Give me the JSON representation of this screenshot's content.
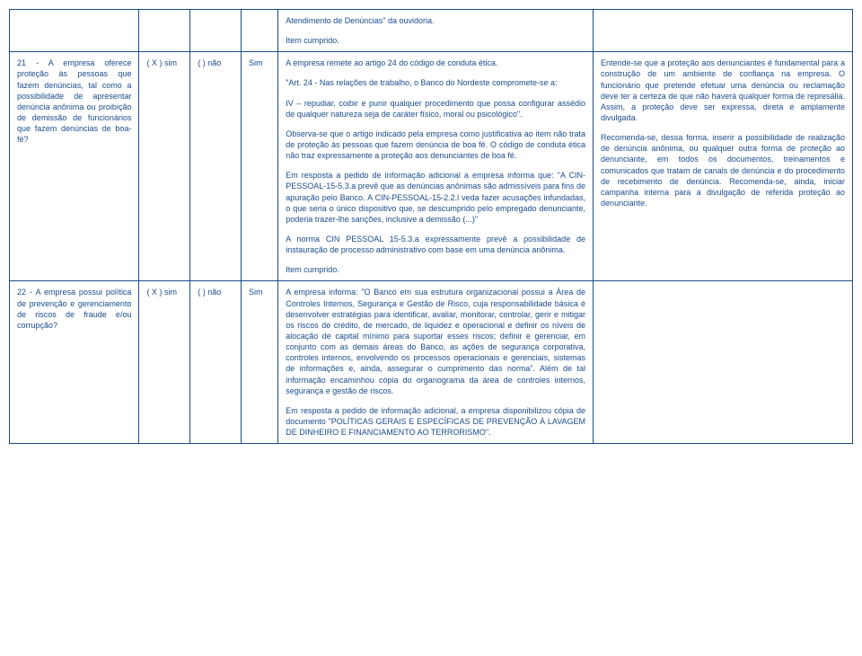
{
  "colors": {
    "border": "#1a4b8c",
    "text": "#1a4b8c",
    "background": "#ffffff"
  },
  "rows": [
    {
      "c1": "",
      "c2": "",
      "c3": "",
      "c4": "",
      "c5_p1": "Atendimento de Denúncias\" da ouvidoria.",
      "c5_p2": "Item cumprido.",
      "c6": ""
    },
    {
      "c1": "21 - A empresa oferece proteção às pessoas que fazem denúncias, tal como a possibilidade de apresentar denúncia anônima ou proibição de demissão de funcionários que fazem denúncias de boa-fé?",
      "c2": "( X ) sim",
      "c3": "( ) não",
      "c4": "Sim",
      "c5_p1": "A empresa remete ao artigo 24 do código de conduta ética.",
      "c5_p2": "\"Art. 24 - Nas relações de trabalho, o Banco do Nordeste compromete-se a:",
      "c5_p3": "IV – repudiar, coibir e punir qualquer procedimento que possa configurar assédio de qualquer natureza seja de caráter físico, moral ou psicológico\".",
      "c5_p4": "Observa-se que o artigo indicado pela empresa como justificativa ao item não trata de proteção às pessoas que fazem denúncia de boa fé. O código de conduta ética não traz expressamente a proteção aos denunciantes de boa fé.",
      "c5_p5": "Em resposta a pedido de informação adicional a empresa informa que: \"A CIN-PESSOAL-15-5.3.a prevê que as denúncias anônimas são admissíveis para fins de apuração pelo Banco. A CIN-PESSOAL-15-2.2.l veda fazer acusações infundadas, o que seria o único dispositivo que, se descumprido pelo empregado denunciante, poderia trazer-lhe sanções, inclusive a demissão (...)\"",
      "c5_p6": "A norma CIN PESSOAL 15-5.3.a expressamente prevê a possibilidade de instauração de processo administrativo com base em uma denúncia anônima.",
      "c5_p7": "Item cumprido.",
      "c6_p1": "Entende-se que a proteção aos denunciantes é fundamental para a construção de um ambiente de confiança na empresa. O funcionário que pretende efetuar uma denúncia ou reclamação deve ter a certeza de que não haverá qualquer forma de represália. Assim, a proteção deve ser expressa, direta e amplamente divulgada.",
      "c6_p2": "Recomenda-se, dessa forma, inserir a possibilidade de realização de denúncia anônima, ou qualquer outra forma de proteção ao denunciante, em todos os documentos, treinamentos e comunicados que tratam de canais de denúncia e do procedimento de recebimento de denúncia. Recomenda-se, ainda, iniciar campanha interna para a divulgação de referida proteção ao denunciante."
    },
    {
      "c1": "22 - A empresa possui política de prevenção e gerenciamento de riscos de fraude e/ou corrupção?",
      "c2": "( X ) sim",
      "c3": "( ) não",
      "c4": "Sim",
      "c5_p1": "A empresa informa: \"O Banco em sua estrutura organizacional possui a Área de Controles Internos, Segurança e Gestão de Risco, cuja responsabilidade básica é desenvolver estratégias para identificar, avaliar, monitorar, controlar, gerir e mitigar os riscos de crédito, de mercado, de liquidez e operacional e definir os níveis de alocação de capital mínimo para suportar esses riscos; definir e gerenciar, em conjunto com as demais áreas do Banco, as ações de segurança corporativa, controles internos, envolvendo os processos operacionais e gerenciais, sistemas de informações e, ainda, assegurar o cumprimento das norma\". Além de tal informação encaminhou cópia do organograma da área de controles internos, segurança e gestão de riscos.",
      "c5_p2": "Em resposta a pedido de informação adicional, a empresa disponibilizou cópia de documento \"POLÍTICAS GERAIS E ESPECÍFICAS DE PREVENÇÃO À LAVAGEM DE DINHEIRO E FINANCIAMENTO AO TERRORISMO\".",
      "c6": ""
    }
  ]
}
